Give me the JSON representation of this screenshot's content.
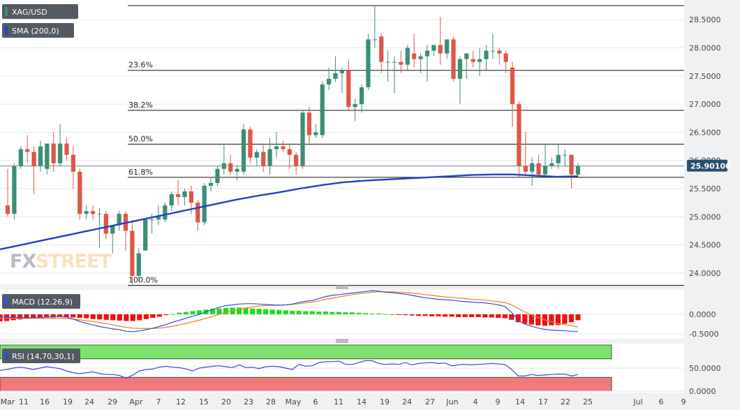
{
  "chart_data": [
    {
      "type": "candlestick",
      "panel": "price",
      "symbol_label": "XAG/USD",
      "indicator_label": "SMA (200,0)",
      "current_price_label": "25.90100",
      "y_range": [
        23.8,
        28.85
      ],
      "y_ticks": [
        "28.5000",
        "28.0000",
        "27.5000",
        "27.0000",
        "26.5000",
        "26.0000",
        "25.5000",
        "25.0000",
        "24.5000",
        "24.0000"
      ],
      "y_tick_values": [
        28.5,
        28.0,
        27.5,
        27.0,
        26.5,
        26.0,
        25.5,
        25.0,
        24.5,
        24.0
      ],
      "x_tick_labels": [
        "Mar",
        "11",
        "16",
        "19",
        "24",
        "29",
        "Apr",
        "7",
        "12",
        "15",
        "20",
        "23",
        "28",
        "May",
        "6",
        "11",
        "14",
        "19",
        "24",
        "27",
        "Jun",
        "4",
        "9",
        "14",
        "17",
        "22",
        "25",
        "Jul",
        "6",
        "9"
      ],
      "fibonacci": [
        {
          "label": "23.6%",
          "value": 27.6
        },
        {
          "label": "38.2%",
          "value": 26.89
        },
        {
          "label": "50.0%",
          "value": 26.29
        },
        {
          "label": "61.8%",
          "value": 25.7
        },
        {
          "label": "100.0%",
          "value": 23.78
        }
      ],
      "fib_high": 28.75,
      "current_price": 25.901,
      "candles": [
        {
          "o": 25.2,
          "h": 25.85,
          "l": 25.0,
          "c": 25.05
        },
        {
          "o": 25.05,
          "h": 25.95,
          "l": 24.95,
          "c": 25.9
        },
        {
          "o": 25.9,
          "h": 26.25,
          "l": 25.85,
          "c": 26.2
        },
        {
          "o": 26.2,
          "h": 26.45,
          "l": 25.95,
          "c": 26.15
        },
        {
          "o": 26.15,
          "h": 26.25,
          "l": 25.4,
          "c": 25.9
        },
        {
          "o": 25.9,
          "h": 26.35,
          "l": 25.8,
          "c": 26.25
        },
        {
          "o": 25.85,
          "h": 26.3,
          "l": 25.75,
          "c": 26.3
        },
        {
          "o": 26.3,
          "h": 26.5,
          "l": 25.8,
          "c": 25.95
        },
        {
          "o": 25.95,
          "h": 26.65,
          "l": 25.9,
          "c": 26.3
        },
        {
          "o": 26.3,
          "h": 26.4,
          "l": 26.0,
          "c": 26.1
        },
        {
          "o": 26.1,
          "h": 26.25,
          "l": 25.5,
          "c": 25.8
        },
        {
          "o": 25.8,
          "h": 25.85,
          "l": 24.95,
          "c": 25.05
        },
        {
          "o": 25.05,
          "h": 25.2,
          "l": 24.95,
          "c": 25.1
        },
        {
          "o": 25.1,
          "h": 25.2,
          "l": 24.95,
          "c": 25.05
        },
        {
          "o": 25.05,
          "h": 25.15,
          "l": 24.45,
          "c": 25.05
        },
        {
          "o": 25.05,
          "h": 25.1,
          "l": 24.6,
          "c": 24.7
        },
        {
          "o": 24.7,
          "h": 24.8,
          "l": 24.35,
          "c": 24.85
        },
        {
          "o": 24.85,
          "h": 25.1,
          "l": 24.75,
          "c": 25.05
        },
        {
          "o": 25.05,
          "h": 25.1,
          "l": 24.4,
          "c": 24.75
        },
        {
          "o": 24.75,
          "h": 24.95,
          "l": 23.8,
          "c": 23.95
        },
        {
          "o": 23.95,
          "h": 24.45,
          "l": 23.85,
          "c": 24.35
        },
        {
          "o": 24.4,
          "h": 24.95,
          "l": 24.4,
          "c": 24.95
        },
        {
          "o": 24.95,
          "h": 25.05,
          "l": 24.7,
          "c": 24.95
        },
        {
          "o": 24.95,
          "h": 25.2,
          "l": 24.85,
          "c": 25.0
        },
        {
          "o": 24.95,
          "h": 25.25,
          "l": 24.9,
          "c": 25.2
        },
        {
          "o": 25.2,
          "h": 25.45,
          "l": 25.1,
          "c": 25.4
        },
        {
          "o": 25.4,
          "h": 25.65,
          "l": 25.2,
          "c": 25.35
        },
        {
          "o": 25.35,
          "h": 25.5,
          "l": 25.2,
          "c": 25.45
        },
        {
          "o": 25.45,
          "h": 25.55,
          "l": 25.05,
          "c": 25.25
        },
        {
          "o": 25.25,
          "h": 25.3,
          "l": 24.75,
          "c": 24.9
        },
        {
          "o": 24.9,
          "h": 25.6,
          "l": 24.85,
          "c": 25.55
        },
        {
          "o": 25.55,
          "h": 25.7,
          "l": 25.45,
          "c": 25.6
        },
        {
          "o": 25.6,
          "h": 25.9,
          "l": 25.55,
          "c": 25.85
        },
        {
          "o": 25.85,
          "h": 26.3,
          "l": 25.75,
          "c": 25.95
        },
        {
          "o": 25.95,
          "h": 26.1,
          "l": 25.75,
          "c": 25.8
        },
        {
          "o": 25.8,
          "h": 25.9,
          "l": 25.65,
          "c": 25.85
        },
        {
          "o": 25.8,
          "h": 26.65,
          "l": 25.75,
          "c": 26.55
        },
        {
          "o": 26.55,
          "h": 26.6,
          "l": 25.95,
          "c": 26.05
        },
        {
          "o": 26.05,
          "h": 26.2,
          "l": 25.9,
          "c": 26.15
        },
        {
          "o": 26.15,
          "h": 26.3,
          "l": 25.8,
          "c": 25.9
        },
        {
          "o": 25.9,
          "h": 26.4,
          "l": 25.75,
          "c": 26.2
        },
        {
          "o": 26.2,
          "h": 26.5,
          "l": 26.05,
          "c": 26.25
        },
        {
          "o": 26.25,
          "h": 26.35,
          "l": 26.15,
          "c": 26.2
        },
        {
          "o": 26.2,
          "h": 26.3,
          "l": 25.85,
          "c": 26.1
        },
        {
          "o": 26.1,
          "h": 26.15,
          "l": 25.75,
          "c": 25.9
        },
        {
          "o": 25.9,
          "h": 26.9,
          "l": 25.85,
          "c": 26.85
        },
        {
          "o": 26.85,
          "h": 26.95,
          "l": 26.3,
          "c": 26.45
        },
        {
          "o": 26.45,
          "h": 26.65,
          "l": 26.4,
          "c": 26.5
        },
        {
          "o": 26.45,
          "h": 27.4,
          "l": 26.4,
          "c": 27.35
        },
        {
          "o": 27.35,
          "h": 27.65,
          "l": 27.25,
          "c": 27.45
        },
        {
          "o": 27.45,
          "h": 27.85,
          "l": 27.4,
          "c": 27.55
        },
        {
          "o": 27.55,
          "h": 27.65,
          "l": 27.2,
          "c": 27.6
        },
        {
          "o": 27.6,
          "h": 27.8,
          "l": 26.9,
          "c": 26.95
        },
        {
          "o": 26.95,
          "h": 27.1,
          "l": 26.7,
          "c": 27.0
        },
        {
          "o": 27.0,
          "h": 27.35,
          "l": 26.85,
          "c": 27.3
        },
        {
          "o": 27.3,
          "h": 28.25,
          "l": 27.25,
          "c": 28.15
        },
        {
          "o": 28.15,
          "h": 28.75,
          "l": 28.0,
          "c": 28.15
        },
        {
          "o": 28.2,
          "h": 28.25,
          "l": 27.55,
          "c": 27.75
        },
        {
          "o": 27.75,
          "h": 27.95,
          "l": 27.4,
          "c": 27.75
        },
        {
          "o": 27.75,
          "h": 27.85,
          "l": 27.2,
          "c": 27.75
        },
        {
          "o": 27.75,
          "h": 27.95,
          "l": 27.55,
          "c": 27.7
        },
        {
          "o": 27.7,
          "h": 28.05,
          "l": 27.6,
          "c": 28.0
        },
        {
          "o": 27.9,
          "h": 28.25,
          "l": 27.65,
          "c": 27.8
        },
        {
          "o": 27.8,
          "h": 27.9,
          "l": 27.55,
          "c": 27.85
        },
        {
          "o": 27.85,
          "h": 28.05,
          "l": 27.4,
          "c": 27.95
        },
        {
          "o": 27.95,
          "h": 28.05,
          "l": 27.85,
          "c": 28.05
        },
        {
          "o": 28.05,
          "h": 28.55,
          "l": 27.7,
          "c": 27.9
        },
        {
          "o": 27.9,
          "h": 28.15,
          "l": 27.8,
          "c": 28.15
        },
        {
          "o": 28.15,
          "h": 28.2,
          "l": 27.4,
          "c": 27.45
        },
        {
          "o": 27.45,
          "h": 27.85,
          "l": 27.0,
          "c": 27.8
        },
        {
          "o": 27.8,
          "h": 27.9,
          "l": 27.45,
          "c": 27.9
        },
        {
          "o": 27.8,
          "h": 27.95,
          "l": 27.65,
          "c": 27.75
        },
        {
          "o": 27.75,
          "h": 28.0,
          "l": 27.5,
          "c": 27.8
        },
        {
          "o": 27.8,
          "h": 28.05,
          "l": 27.6,
          "c": 27.95
        },
        {
          "o": 27.95,
          "h": 28.25,
          "l": 27.8,
          "c": 27.95
        },
        {
          "o": 27.95,
          "h": 28.0,
          "l": 27.7,
          "c": 27.9
        },
        {
          "o": 27.9,
          "h": 27.95,
          "l": 27.55,
          "c": 27.75
        },
        {
          "o": 27.65,
          "h": 27.75,
          "l": 26.6,
          "c": 27.0
        },
        {
          "o": 27.0,
          "h": 27.05,
          "l": 25.7,
          "c": 25.9
        },
        {
          "o": 25.9,
          "h": 26.5,
          "l": 25.75,
          "c": 25.8
        },
        {
          "o": 25.8,
          "h": 26.05,
          "l": 25.55,
          "c": 25.95
        },
        {
          "o": 25.95,
          "h": 26.1,
          "l": 25.7,
          "c": 25.75
        },
        {
          "o": 25.75,
          "h": 26.3,
          "l": 25.7,
          "c": 25.9
        },
        {
          "o": 25.9,
          "h": 26.05,
          "l": 25.85,
          "c": 25.95
        },
        {
          "o": 25.95,
          "h": 26.3,
          "l": 25.85,
          "c": 26.1
        },
        {
          "o": 26.1,
          "h": 26.2,
          "l": 25.9,
          "c": 26.1
        },
        {
          "o": 26.1,
          "h": 26.1,
          "l": 25.5,
          "c": 25.75
        },
        {
          "o": 25.75,
          "h": 25.95,
          "l": 25.7,
          "c": 25.9
        }
      ],
      "sma200": [
        24.42,
        24.5,
        24.58,
        24.66,
        24.74,
        24.82,
        24.9,
        24.98,
        25.06,
        25.14,
        25.22,
        25.3,
        25.37,
        25.43,
        25.5,
        25.56,
        25.61,
        25.64,
        25.66,
        25.68,
        25.7,
        25.72,
        25.74,
        25.75,
        25.75,
        25.73,
        25.71,
        25.72
      ]
    },
    {
      "type": "bar+line",
      "panel": "macd",
      "label": "MACD (12,26,9)",
      "y_ticks": [
        "0.0000",
        "-0.5000"
      ],
      "y_tick_values": [
        0.0,
        -0.5
      ],
      "y_range": [
        -0.62,
        0.62
      ],
      "histogram": [
        -0.18,
        -0.17,
        -0.15,
        -0.13,
        -0.11,
        -0.1,
        -0.09,
        -0.08,
        -0.08,
        -0.07,
        -0.07,
        -0.08,
        -0.09,
        -0.1,
        -0.12,
        -0.13,
        -0.14,
        -0.15,
        -0.16,
        -0.17,
        -0.17,
        -0.15,
        -0.12,
        -0.09,
        -0.06,
        -0.02,
        0.01,
        0.04,
        0.06,
        0.08,
        0.1,
        0.12,
        0.14,
        0.15,
        0.16,
        0.17,
        0.17,
        0.16,
        0.15,
        0.14,
        0.13,
        0.12,
        0.11,
        0.1,
        0.09,
        0.09,
        0.08,
        0.08,
        0.07,
        0.07,
        0.06,
        0.06,
        0.05,
        0.05,
        0.04,
        0.03,
        0.02,
        0.02,
        0.01,
        0.0,
        -0.01,
        -0.02,
        -0.03,
        -0.04,
        -0.04,
        -0.05,
        -0.05,
        -0.06,
        -0.06,
        -0.07,
        -0.07,
        -0.07,
        -0.07,
        -0.08,
        -0.08,
        -0.09,
        -0.1,
        -0.14,
        -0.2,
        -0.24,
        -0.26,
        -0.28,
        -0.29,
        -0.28,
        -0.27,
        -0.24,
        -0.2,
        -0.15
      ],
      "macd": [
        -0.05,
        -0.07,
        -0.08,
        -0.08,
        -0.09,
        -0.09,
        -0.08,
        -0.07,
        -0.06,
        -0.06,
        -0.07,
        -0.12,
        -0.18,
        -0.23,
        -0.27,
        -0.31,
        -0.34,
        -0.37,
        -0.39,
        -0.43,
        -0.44,
        -0.42,
        -0.39,
        -0.35,
        -0.31,
        -0.26,
        -0.2,
        -0.15,
        -0.1,
        -0.05,
        0.0,
        0.06,
        0.12,
        0.18,
        0.22,
        0.24,
        0.26,
        0.27,
        0.27,
        0.26,
        0.25,
        0.24,
        0.23,
        0.24,
        0.26,
        0.3,
        0.33,
        0.35,
        0.4,
        0.45,
        0.48,
        0.5,
        0.52,
        0.54,
        0.56,
        0.58,
        0.6,
        0.59,
        0.56,
        0.55,
        0.53,
        0.51,
        0.48,
        0.45,
        0.42,
        0.4,
        0.38,
        0.37,
        0.36,
        0.34,
        0.32,
        0.31,
        0.3,
        0.29,
        0.27,
        0.24,
        0.2,
        0.05,
        -0.15,
        -0.25,
        -0.3,
        -0.35,
        -0.38,
        -0.4,
        -0.41,
        -0.42,
        -0.43,
        -0.44
      ],
      "signal": [
        -0.1,
        -0.1,
        -0.1,
        -0.1,
        -0.1,
        -0.1,
        -0.1,
        -0.1,
        -0.1,
        -0.1,
        -0.11,
        -0.12,
        -0.14,
        -0.16,
        -0.18,
        -0.21,
        -0.24,
        -0.27,
        -0.3,
        -0.33,
        -0.35,
        -0.36,
        -0.36,
        -0.36,
        -0.35,
        -0.33,
        -0.3,
        -0.27,
        -0.23,
        -0.19,
        -0.15,
        -0.1,
        -0.05,
        0.0,
        0.05,
        0.09,
        0.13,
        0.16,
        0.19,
        0.21,
        0.22,
        0.23,
        0.23,
        0.24,
        0.25,
        0.27,
        0.29,
        0.31,
        0.34,
        0.38,
        0.41,
        0.44,
        0.47,
        0.5,
        0.52,
        0.54,
        0.56,
        0.57,
        0.57,
        0.57,
        0.56,
        0.55,
        0.54,
        0.52,
        0.5,
        0.48,
        0.46,
        0.44,
        0.43,
        0.41,
        0.4,
        0.38,
        0.37,
        0.36,
        0.34,
        0.32,
        0.3,
        0.24,
        0.15,
        0.06,
        -0.02,
        -0.08,
        -0.14,
        -0.19,
        -0.23,
        -0.26,
        -0.29,
        -0.32
      ]
    },
    {
      "type": "line",
      "panel": "rsi",
      "label": "RSI (14,70,30,1)",
      "y_ticks": [
        "50.0000",
        "0.0000"
      ],
      "y_tick_values": [
        50,
        0
      ],
      "y_range": [
        -3,
        103
      ],
      "overbought": 70,
      "oversold": 30,
      "rsi": [
        45,
        47,
        50,
        52,
        50,
        47,
        50,
        53,
        51,
        49,
        44,
        40,
        38,
        40,
        42,
        38,
        36,
        36,
        34,
        28,
        35,
        44,
        47,
        48,
        52,
        54,
        52,
        51,
        48,
        44,
        50,
        52,
        54,
        55,
        53,
        51,
        57,
        51,
        52,
        49,
        53,
        54,
        53,
        50,
        47,
        58,
        54,
        55,
        62,
        64,
        64,
        65,
        58,
        58,
        62,
        66,
        66,
        60,
        58,
        59,
        58,
        62,
        57,
        60,
        61,
        62,
        60,
        61,
        55,
        57,
        58,
        57,
        58,
        59,
        60,
        59,
        58,
        47,
        33,
        33,
        36,
        34,
        35,
        36,
        37,
        37,
        33,
        36
      ]
    }
  ],
  "watermark": {
    "part1": "FX",
    "part2": "STREET"
  },
  "colors": {
    "bull": "#3a8f76",
    "bear": "#e05545",
    "sma": "#2140c8",
    "macd_pos": "#22dd22",
    "macd_neg": "#ee1111",
    "macd_line": "#2e52d8",
    "signal_line": "#f07e1e",
    "rsi_line": "#2b4ed6",
    "rsi_ob": "#7ee26f",
    "rsi_os": "#f07a7a",
    "tag_bg": "#545a62",
    "price_tag_bg": "#2b4e6e"
  }
}
